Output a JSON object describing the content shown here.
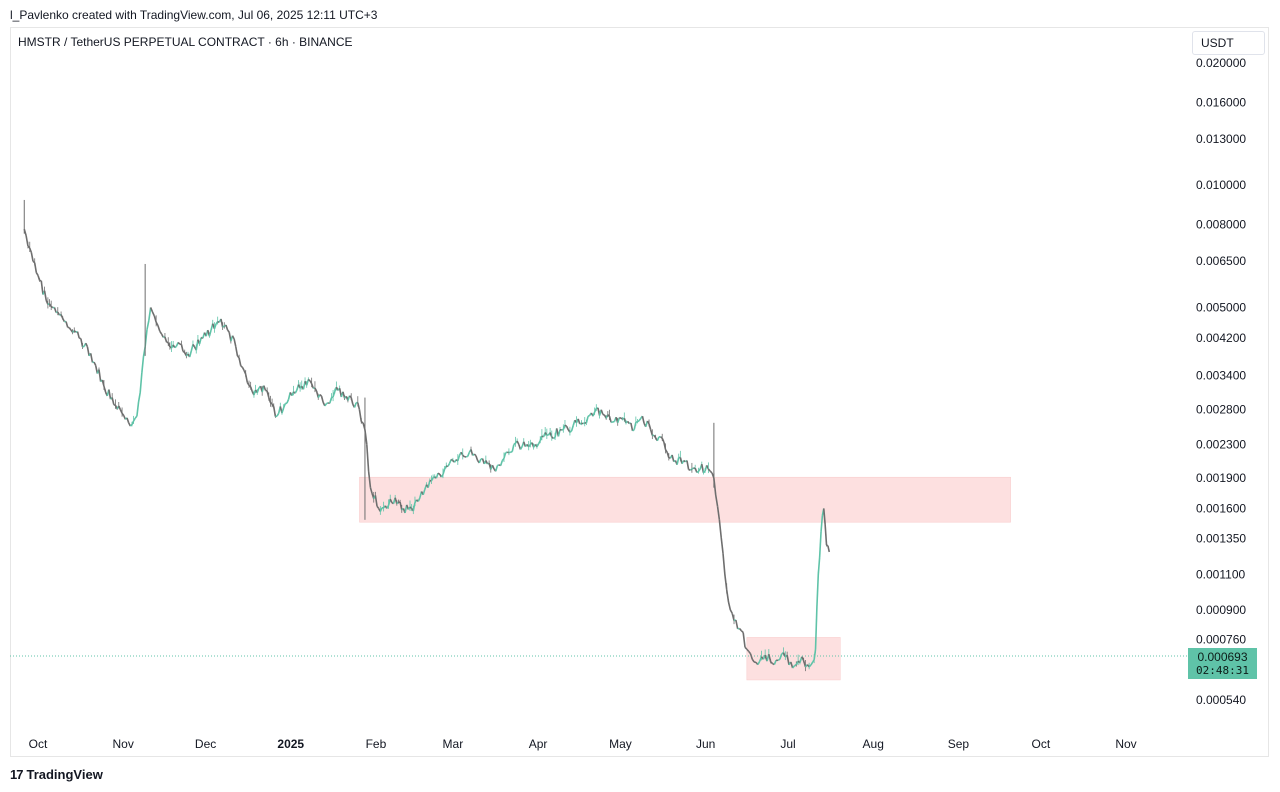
{
  "credit": "l_Pavlenko created with TradingView.com, Jul 06, 2025 12:11 UTC+3",
  "footer": {
    "brand": "TradingView",
    "mark": "17"
  },
  "chart_data": {
    "type": "line",
    "title": "HMSTR / TetherUS PERPETUAL CONTRACT · 6h · BINANCE",
    "currency": "USDT",
    "y_scale": "log",
    "ylim": [
      0.00048,
      0.0215
    ],
    "y_ticks": [
      "0.020000",
      "0.016000",
      "0.013000",
      "0.010000",
      "0.008000",
      "0.006500",
      "0.005000",
      "0.004200",
      "0.003400",
      "0.002800",
      "0.002300",
      "0.001900",
      "0.001600",
      "0.001350",
      "0.001100",
      "0.000900",
      "0.000760",
      "0.000540"
    ],
    "x_ticks": [
      {
        "label": "Oct",
        "date": "2024-10-01"
      },
      {
        "label": "Nov",
        "date": "2024-11-01"
      },
      {
        "label": "Dec",
        "date": "2024-12-01"
      },
      {
        "label": "2025",
        "date": "2025-01-01",
        "bold": true
      },
      {
        "label": "Feb",
        "date": "2025-02-01"
      },
      {
        "label": "Mar",
        "date": "2025-03-01"
      },
      {
        "label": "Apr",
        "date": "2025-04-01"
      },
      {
        "label": "May",
        "date": "2025-05-01"
      },
      {
        "label": "Jun",
        "date": "2025-06-01"
      },
      {
        "label": "Jul",
        "date": "2025-07-01"
      },
      {
        "label": "Aug",
        "date": "2025-08-01"
      },
      {
        "label": "Sep",
        "date": "2025-09-01"
      },
      {
        "label": "Oct",
        "date": "2025-10-01"
      },
      {
        "label": "Nov",
        "date": "2025-11-01"
      }
    ],
    "last_price": "0.000693",
    "countdown": "02:48:31",
    "colors": {
      "up": "#5fc3a8",
      "down": "#6e6e6e",
      "zone": "#fde0e0",
      "last_line": "#5fc3a8"
    },
    "zones": [
      {
        "start": "2025-01-26",
        "end": "2025-09-20",
        "top": 0.00191,
        "bottom": 0.00148
      },
      {
        "start": "2025-06-16",
        "end": "2025-07-20",
        "top": 0.00077,
        "bottom": 0.000605
      }
    ],
    "series": [
      {
        "x": [
          "2024-09-26",
          "2024-09-28",
          "2024-10-01",
          "2024-10-04",
          "2024-10-07",
          "2024-10-10",
          "2024-10-13",
          "2024-10-16",
          "2024-10-19",
          "2024-10-22",
          "2024-10-25",
          "2024-10-28",
          "2024-10-31",
          "2024-11-03",
          "2024-11-06",
          "2024-11-09",
          "2024-11-11",
          "2024-11-13",
          "2024-11-15",
          "2024-11-18",
          "2024-11-21",
          "2024-11-24",
          "2024-11-27",
          "2024-11-30",
          "2024-12-03",
          "2024-12-06",
          "2024-12-09",
          "2024-12-12",
          "2024-12-15",
          "2024-12-18",
          "2024-12-21",
          "2024-12-24",
          "2024-12-27",
          "2024-12-30",
          "2025-01-02",
          "2025-01-05",
          "2025-01-08",
          "2025-01-11",
          "2025-01-14",
          "2025-01-17",
          "2025-01-20",
          "2025-01-23",
          "2025-01-26",
          "2025-01-28",
          "2025-01-30",
          "2025-02-02",
          "2025-02-05",
          "2025-02-08",
          "2025-02-11",
          "2025-02-14",
          "2025-02-17",
          "2025-02-20",
          "2025-02-23",
          "2025-02-26",
          "2025-03-01",
          "2025-03-04",
          "2025-03-07",
          "2025-03-10",
          "2025-03-13",
          "2025-03-16",
          "2025-03-19",
          "2025-03-22",
          "2025-03-25",
          "2025-03-28",
          "2025-03-31",
          "2025-04-03",
          "2025-04-06",
          "2025-04-09",
          "2025-04-12",
          "2025-04-15",
          "2025-04-18",
          "2025-04-21",
          "2025-04-24",
          "2025-04-27",
          "2025-04-30",
          "2025-05-03",
          "2025-05-06",
          "2025-05-09",
          "2025-05-12",
          "2025-05-15",
          "2025-05-18",
          "2025-05-21",
          "2025-05-24",
          "2025-05-27",
          "2025-05-30",
          "2025-06-02",
          "2025-06-04",
          "2025-06-06",
          "2025-06-08",
          "2025-06-10",
          "2025-06-12",
          "2025-06-14",
          "2025-06-16",
          "2025-06-18",
          "2025-06-20",
          "2025-06-22",
          "2025-06-24",
          "2025-06-26",
          "2025-06-28",
          "2025-06-30",
          "2025-07-02",
          "2025-07-04",
          "2025-07-06",
          "2025-07-08",
          "2025-07-10",
          "2025-07-11",
          "2025-07-12",
          "2025-07-13",
          "2025-07-14",
          "2025-07-15",
          "2025-07-16"
        ],
        "y": [
          0.0078,
          0.007,
          0.006,
          0.0052,
          0.005,
          0.0047,
          0.0044,
          0.0042,
          0.004,
          0.0036,
          0.0032,
          0.003,
          0.0028,
          0.0026,
          0.0027,
          0.004,
          0.005,
          0.0046,
          0.0043,
          0.004,
          0.0041,
          0.0038,
          0.004,
          0.0042,
          0.0044,
          0.0046,
          0.0044,
          0.004,
          0.0035,
          0.0031,
          0.0032,
          0.003,
          0.0027,
          0.0029,
          0.0031,
          0.0032,
          0.0033,
          0.003,
          0.0029,
          0.0031,
          0.0031,
          0.003,
          0.0028,
          0.0025,
          0.0018,
          0.0016,
          0.0016,
          0.0017,
          0.0016,
          0.0016,
          0.0017,
          0.0018,
          0.0019,
          0.002,
          0.0021,
          0.0022,
          0.0022,
          0.0021,
          0.0021,
          0.002,
          0.0021,
          0.0022,
          0.0023,
          0.0023,
          0.0023,
          0.0024,
          0.0024,
          0.0025,
          0.0025,
          0.0026,
          0.0026,
          0.0027,
          0.0028,
          0.0027,
          0.0026,
          0.0026,
          0.0025,
          0.0027,
          0.0025,
          0.0024,
          0.0022,
          0.0021,
          0.0021,
          0.002,
          0.002,
          0.002,
          0.0019,
          0.0015,
          0.0011,
          0.0009,
          0.00085,
          0.0008,
          0.00072,
          0.00068,
          0.00066,
          0.00068,
          0.0007,
          0.00066,
          0.00068,
          0.00069,
          0.00067,
          0.00066,
          0.00069,
          0.00066,
          0.00067,
          0.00072,
          0.0011,
          0.0014,
          0.0016,
          0.0013,
          0.00125
        ]
      }
    ]
  }
}
